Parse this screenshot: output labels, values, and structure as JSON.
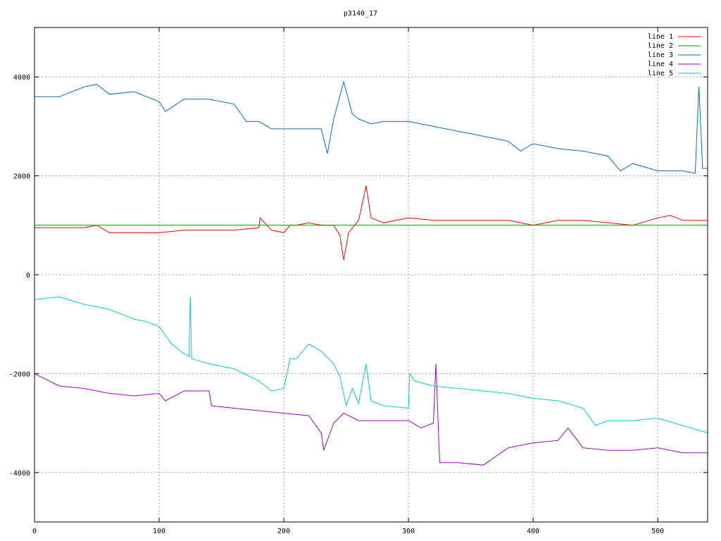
{
  "chart_data": {
    "type": "line",
    "title": "p3140_17",
    "xlabel": "",
    "ylabel": "",
    "xlim": [
      0,
      540
    ],
    "ylim": [
      -5000,
      5000
    ],
    "x_ticks": [
      0,
      100,
      200,
      300,
      400,
      500
    ],
    "y_ticks": [
      -4000,
      -2000,
      0,
      2000,
      4000
    ],
    "grid": true,
    "legend_position": "top-right",
    "series": [
      {
        "name": "line 1",
        "color": "#ff0000",
        "x": [
          0,
          20,
          40,
          50,
          60,
          80,
          100,
          120,
          140,
          160,
          180,
          181,
          190,
          200,
          205,
          210,
          220,
          230,
          240,
          245,
          248,
          252,
          260,
          266,
          270,
          280,
          300,
          320,
          340,
          360,
          380,
          400,
          410,
          420,
          440,
          460,
          480,
          500,
          510,
          520,
          540
        ],
        "y": [
          950,
          950,
          950,
          1000,
          850,
          850,
          850,
          900,
          900,
          900,
          950,
          1150,
          900,
          850,
          1000,
          1000,
          1050,
          1000,
          1000,
          800,
          300,
          850,
          1100,
          1800,
          1150,
          1050,
          1150,
          1100,
          1100,
          1100,
          1100,
          1000,
          1050,
          1100,
          1100,
          1050,
          1000,
          1150,
          1200,
          1100,
          1100
        ]
      },
      {
        "name": "line 2",
        "color": "#00a000",
        "x": [
          0,
          540
        ],
        "y": [
          1000,
          1000
        ]
      },
      {
        "name": "line 3",
        "color": "#0070c0",
        "x": [
          0,
          20,
          40,
          50,
          60,
          80,
          100,
          105,
          120,
          140,
          160,
          170,
          180,
          190,
          200,
          220,
          230,
          235,
          240,
          248,
          255,
          260,
          270,
          280,
          300,
          320,
          340,
          360,
          380,
          390,
          400,
          420,
          440,
          460,
          470,
          480,
          500,
          520,
          530,
          533,
          536,
          540
        ],
        "y": [
          3600,
          3600,
          3800,
          3850,
          3650,
          3700,
          3500,
          3300,
          3550,
          3550,
          3450,
          3100,
          3100,
          2950,
          2950,
          2950,
          2950,
          2450,
          3150,
          3900,
          3250,
          3150,
          3050,
          3100,
          3100,
          3000,
          2900,
          2800,
          2700,
          2500,
          2650,
          2550,
          2500,
          2400,
          2100,
          2250,
          2100,
          2100,
          2050,
          3800,
          2150,
          2150
        ]
      },
      {
        "name": "line 4",
        "color": "#a000d0",
        "x": [
          0,
          20,
          40,
          60,
          80,
          100,
          105,
          120,
          140,
          142,
          160,
          180,
          200,
          220,
          230,
          232,
          240,
          248,
          252,
          260,
          280,
          300,
          310,
          320,
          322,
          325,
          340,
          360,
          380,
          400,
          420,
          428,
          440,
          460,
          480,
          500,
          520,
          540
        ],
        "y": [
          -2000,
          -2250,
          -2300,
          -2400,
          -2450,
          -2400,
          -2550,
          -2350,
          -2350,
          -2650,
          -2700,
          -2750,
          -2800,
          -2850,
          -3200,
          -3550,
          -3000,
          -2800,
          -2850,
          -2950,
          -2950,
          -2950,
          -3100,
          -3000,
          -1800,
          -3800,
          -3800,
          -3850,
          -3500,
          -3400,
          -3350,
          -3100,
          -3500,
          -3550,
          -3550,
          -3500,
          -3600,
          -3600
        ]
      },
      {
        "name": "line 5",
        "color": "#00d0d0",
        "x": [
          0,
          20,
          40,
          60,
          80,
          90,
          100,
          110,
          120,
          124,
          125,
          126,
          140,
          160,
          180,
          190,
          200,
          205,
          210,
          220,
          230,
          240,
          245,
          250,
          255,
          260,
          266,
          270,
          280,
          300,
          301,
          305,
          320,
          340,
          360,
          380,
          400,
          420,
          440,
          450,
          460,
          480,
          500,
          520,
          540
        ],
        "y": [
          -500,
          -450,
          -600,
          -700,
          -900,
          -950,
          -1050,
          -1400,
          -1600,
          -1650,
          -450,
          -1700,
          -1800,
          -1900,
          -2150,
          -2350,
          -2300,
          -1700,
          -1700,
          -1400,
          -1550,
          -1800,
          -2050,
          -2650,
          -2300,
          -2600,
          -1800,
          -2550,
          -2650,
          -2700,
          -2000,
          -2150,
          -2250,
          -2300,
          -2350,
          -2400,
          -2500,
          -2550,
          -2700,
          -3050,
          -2950,
          -2950,
          -2900,
          -3050,
          -3200
        ]
      }
    ]
  }
}
